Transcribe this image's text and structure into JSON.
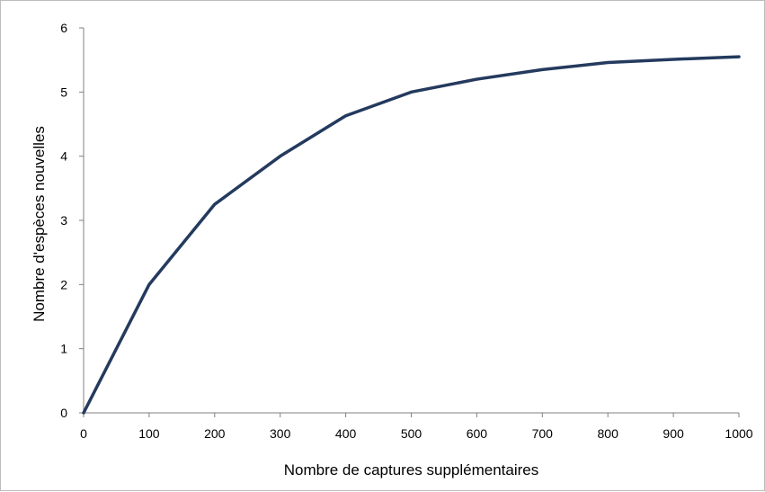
{
  "chart_data": {
    "type": "line",
    "title": "",
    "xlabel": "Nombre de captures supplémentaires",
    "ylabel": "Nombre d'espèces nouvelles",
    "x": [
      0,
      100,
      200,
      300,
      400,
      500,
      600,
      700,
      800,
      900,
      1000
    ],
    "xlim": [
      0,
      1000
    ],
    "ylim": [
      0,
      6
    ],
    "xticks": [
      "0",
      "100",
      "200",
      "300",
      "400",
      "500",
      "600",
      "700",
      "800",
      "900",
      "1000"
    ],
    "yticks": [
      "0",
      "1",
      "2",
      "3",
      "4",
      "5",
      "6"
    ],
    "grid": false,
    "legend": "none",
    "series": [
      {
        "values": [
          0,
          2.0,
          3.25,
          4.0,
          4.63,
          5.0,
          5.2,
          5.35,
          5.46,
          5.51,
          5.55
        ],
        "color": "#243a5e"
      }
    ]
  }
}
